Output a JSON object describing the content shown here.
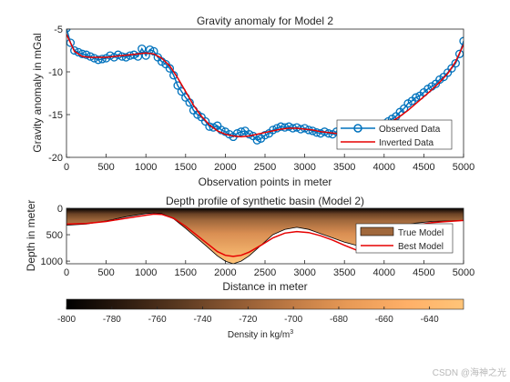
{
  "watermark": "CSDN @海神之光",
  "chart_data": [
    {
      "type": "line",
      "title": "Gravity anomaly for Model 2",
      "xlabel": "Observation points in meter",
      "ylabel": "Gravity anomaly in mGal",
      "xlim": [
        0,
        5000
      ],
      "ylim": [
        -20,
        -5
      ],
      "xticks": [
        "0",
        "500",
        "1000",
        "1500",
        "2000",
        "2500",
        "3000",
        "3500",
        "4000",
        "4500",
        "5000"
      ],
      "yticks": [
        "-5",
        "-10",
        "-15",
        "-20"
      ],
      "legend": "bottom-right",
      "series": [
        {
          "name": "Observed Data",
          "color": "#0072bd",
          "marker": "circle",
          "x": [
            0,
            50,
            100,
            150,
            200,
            250,
            300,
            350,
            400,
            450,
            500,
            550,
            600,
            650,
            700,
            750,
            800,
            850,
            900,
            950,
            1000,
            1050,
            1100,
            1150,
            1200,
            1250,
            1300,
            1350,
            1400,
            1450,
            1500,
            1550,
            1600,
            1650,
            1700,
            1750,
            1800,
            1850,
            1900,
            1950,
            2000,
            2050,
            2100,
            2150,
            2200,
            2250,
            2300,
            2350,
            2400,
            2450,
            2500,
            2550,
            2600,
            2650,
            2700,
            2750,
            2800,
            2850,
            2900,
            2950,
            3000,
            3050,
            3100,
            3150,
            3200,
            3250,
            3300,
            3350,
            3400,
            3450,
            3500,
            3550,
            3600,
            3650,
            3700,
            3750,
            3800,
            3850,
            3900,
            3950,
            4000,
            4050,
            4100,
            4150,
            4200,
            4250,
            4300,
            4350,
            4400,
            4450,
            4500,
            4550,
            4600,
            4650,
            4700,
            4750,
            4800,
            4850,
            4900,
            4950,
            5000
          ],
          "y": [
            -4.9,
            -6.6,
            -7.5,
            -7.7,
            -7.9,
            -8.0,
            -8.2,
            -8.4,
            -8.6,
            -8.5,
            -8.4,
            -8.1,
            -8.3,
            -8.0,
            -8.2,
            -8.3,
            -8.1,
            -8.0,
            -8.2,
            -7.3,
            -8.1,
            -7.4,
            -7.6,
            -8.3,
            -8.8,
            -9.1,
            -9.6,
            -10.4,
            -11.6,
            -12.3,
            -13.0,
            -13.6,
            -14.5,
            -15.0,
            -15.3,
            -15.8,
            -16.4,
            -16.5,
            -16.3,
            -16.8,
            -17.0,
            -17.3,
            -17.6,
            -17.2,
            -17.0,
            -16.9,
            -17.3,
            -17.5,
            -18.0,
            -17.8,
            -17.4,
            -17.2,
            -16.8,
            -16.6,
            -16.4,
            -16.5,
            -16.4,
            -16.6,
            -16.5,
            -16.7,
            -16.6,
            -16.8,
            -16.9,
            -17.1,
            -17.2,
            -17.0,
            -17.2,
            -17.3,
            -17.0,
            -16.9,
            -17.2,
            -17.4,
            -17.3,
            -17.1,
            -17.0,
            -16.8,
            -16.9,
            -16.7,
            -16.6,
            -16.3,
            -16.1,
            -15.8,
            -15.5,
            -15.2,
            -14.7,
            -14.3,
            -13.7,
            -13.4,
            -13.0,
            -12.8,
            -12.4,
            -12.0,
            -11.7,
            -11.4,
            -10.9,
            -10.6,
            -10.1,
            -9.6,
            -9.0,
            -7.9,
            -6.4
          ]
        },
        {
          "name": "Inverted Data",
          "color": "#e60000",
          "x": [
            0,
            100,
            200,
            300,
            400,
            500,
            600,
            700,
            800,
            900,
            1000,
            1100,
            1200,
            1300,
            1400,
            1500,
            1600,
            1700,
            1800,
            1900,
            2000,
            2100,
            2200,
            2300,
            2400,
            2500,
            2600,
            2700,
            2800,
            2900,
            3000,
            3100,
            3200,
            3300,
            3400,
            3500,
            3600,
            3700,
            3800,
            3900,
            4000,
            4100,
            4200,
            4300,
            4400,
            4500,
            4600,
            4700,
            4800,
            4900,
            5000
          ],
          "y": [
            -5.6,
            -7.6,
            -8.2,
            -8.3,
            -8.3,
            -8.3,
            -8.2,
            -8.1,
            -8.0,
            -7.9,
            -7.8,
            -7.9,
            -8.4,
            -9.3,
            -10.7,
            -12.3,
            -13.9,
            -15.2,
            -16.2,
            -16.9,
            -17.3,
            -17.5,
            -17.6,
            -17.5,
            -17.3,
            -17.1,
            -16.9,
            -16.7,
            -16.6,
            -16.6,
            -16.7,
            -16.8,
            -17.0,
            -17.1,
            -17.2,
            -17.2,
            -17.2,
            -17.1,
            -17.0,
            -16.7,
            -16.3,
            -15.8,
            -15.2,
            -14.5,
            -13.7,
            -12.9,
            -12.1,
            -11.2,
            -10.2,
            -8.8,
            -6.8
          ]
        }
      ]
    },
    {
      "type": "area",
      "title": "Depth profile of synthetic basin (Model 2)",
      "xlabel": "Distance in meter",
      "ylabel": "Depth in meter",
      "xlim": [
        0,
        5000
      ],
      "ylim": [
        1050,
        0
      ],
      "y_reversed": true,
      "xticks": [
        "0",
        "500",
        "1000",
        "1500",
        "2000",
        "2500",
        "3000",
        "3500",
        "4000",
        "4500",
        "5000"
      ],
      "yticks": [
        "0",
        "500",
        "1000"
      ],
      "legend": "right",
      "series": [
        {
          "name": "True Model",
          "color": "#a0683c",
          "x": [
            0,
            250,
            500,
            750,
            1000,
            1100,
            1200,
            1350,
            1500,
            1750,
            1900,
            2000,
            2100,
            2200,
            2300,
            2450,
            2600,
            2750,
            2900,
            3050,
            3200,
            3350,
            3500,
            3650,
            3800,
            3950,
            4100,
            4250,
            4400,
            4600,
            4800,
            5000
          ],
          "y": [
            320,
            300,
            240,
            160,
            100,
            90,
            100,
            200,
            380,
            700,
            900,
            1000,
            1050,
            1000,
            900,
            700,
            500,
            400,
            360,
            400,
            480,
            560,
            640,
            700,
            720,
            620,
            440,
            320,
            280,
            250,
            240,
            230
          ]
        },
        {
          "name": "Best Model",
          "color": "#e60000",
          "x": [
            0,
            250,
            500,
            750,
            1000,
            1100,
            1200,
            1350,
            1500,
            1750,
            1900,
            2000,
            2100,
            2200,
            2300,
            2450,
            2600,
            2750,
            2900,
            3050,
            3200,
            3350,
            3500,
            3650,
            3800,
            3950,
            4100,
            4250,
            4400,
            4600,
            4800,
            5000
          ],
          "y": [
            300,
            290,
            250,
            190,
            130,
            110,
            115,
            190,
            340,
            640,
            820,
            890,
            910,
            890,
            830,
            700,
            560,
            470,
            440,
            460,
            520,
            600,
            700,
            790,
            830,
            740,
            560,
            400,
            320,
            270,
            250,
            230
          ]
        }
      ]
    },
    {
      "type": "colorbar",
      "label": "Density in kg/m",
      "label_superscript": "3",
      "range": [
        -800,
        -625
      ],
      "ticks": [
        "-800",
        "-780",
        "-760",
        "-740",
        "-720",
        "-700",
        "-680",
        "-660",
        "-640"
      ],
      "colors": [
        "#000000",
        "#2b1a0f",
        "#5c3a21",
        "#8f5a33",
        "#c07b45",
        "#e89a56",
        "#ffb068",
        "#ffc478"
      ]
    }
  ]
}
